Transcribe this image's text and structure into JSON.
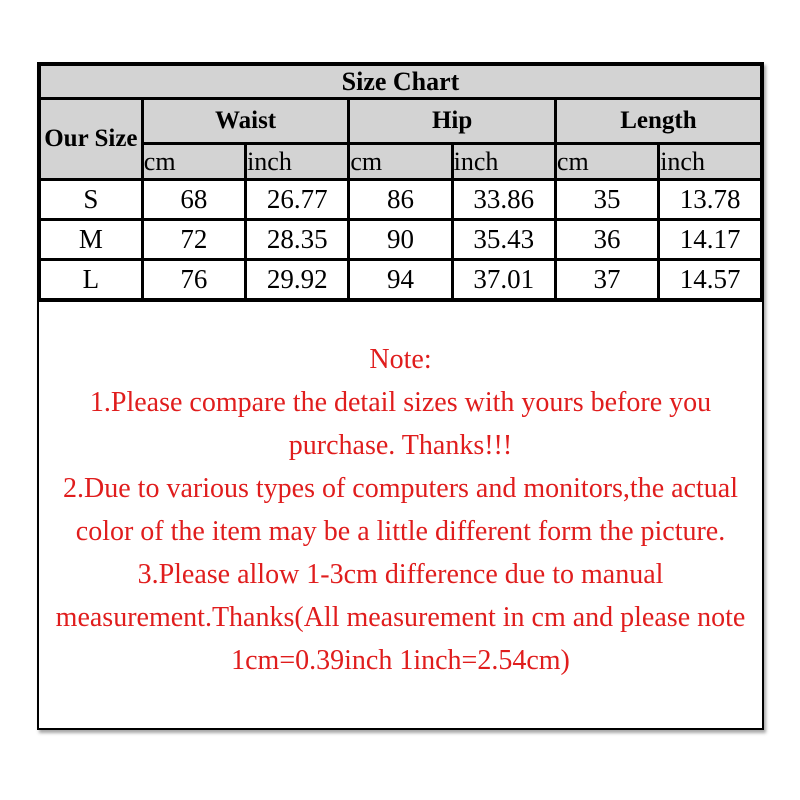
{
  "size_chart": {
    "title": "Size Chart",
    "size_col_header": "Our Size",
    "groups": [
      "Waist",
      "Hip",
      "Length"
    ],
    "units": [
      "cm",
      "inch",
      "cm",
      "inch",
      "cm",
      "inch"
    ],
    "rows": [
      {
        "size": "S",
        "values": [
          "68",
          "26.77",
          "86",
          "33.86",
          "35",
          "13.78"
        ]
      },
      {
        "size": "M",
        "values": [
          "72",
          "28.35",
          "90",
          "35.43",
          "36",
          "14.17"
        ]
      },
      {
        "size": "L",
        "values": [
          "76",
          "29.92",
          "94",
          "37.01",
          "37",
          "14.57"
        ]
      }
    ]
  },
  "note": {
    "heading": "Note:",
    "items": [
      "1.Please compare the detail sizes with yours before you purchase. Thanks!!!",
      "2.Due to various types of computers and monitors,the actual color of the item may be a little different form the picture.",
      "3.Please allow 1-3cm difference due to manual measurement.Thanks(All measurement in cm and please note 1cm=0.39inch 1inch=2.54cm)"
    ]
  },
  "colors": {
    "header_bg": "#d3d3d3",
    "note_text": "#e01d1d",
    "border": "#000000",
    "body_text": "#000000"
  }
}
